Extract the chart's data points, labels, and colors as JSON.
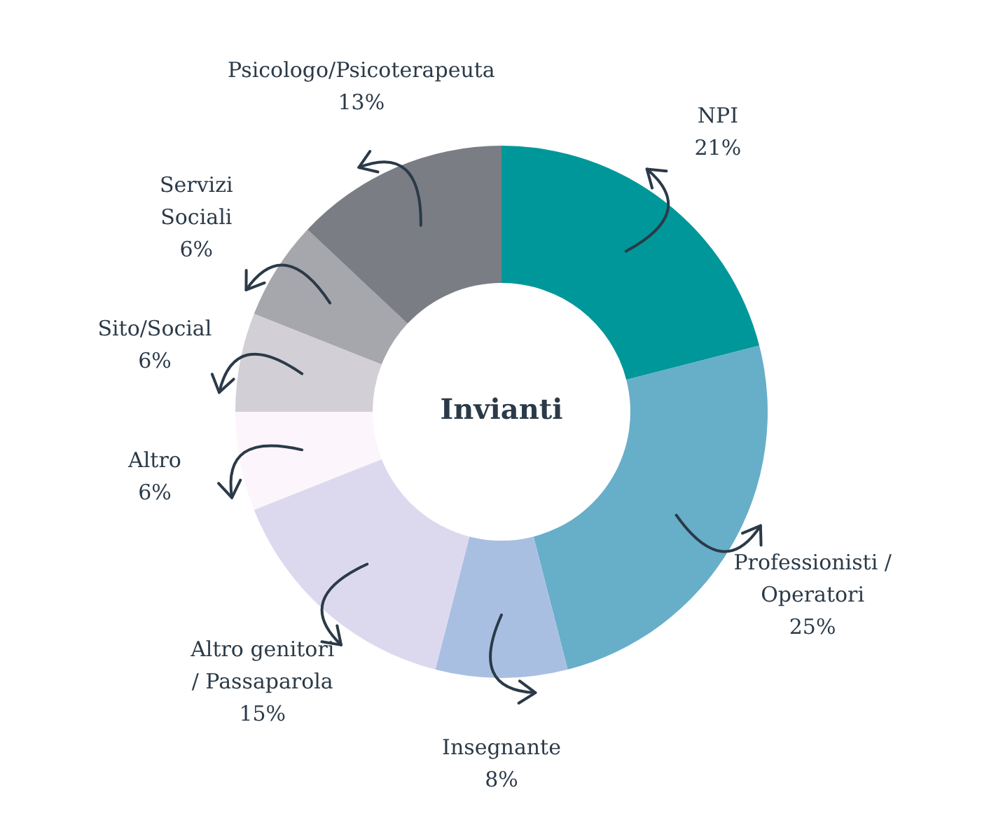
{
  "chart_data": {
    "type": "donut",
    "title": "Invianti",
    "categories": [
      "NPI",
      "Professionisti /\nOperatori",
      "Insegnante",
      "Altro genitori\n/ Passaparola",
      "Altro",
      "Sito/Social",
      "Servizi\nSociali",
      "Psicologo/Psicoterapeuta"
    ],
    "values": [
      21,
      25,
      8,
      15,
      6,
      6,
      6,
      13
    ],
    "value_labels": [
      "21%",
      "25%",
      "8%",
      "15%",
      "6%",
      "6%",
      "6%",
      "13%"
    ],
    "colors": [
      "#00979a",
      "#67aec9",
      "#a9bfe2",
      "#dcd9ef",
      "#fcf5fb",
      "#d2d0d6",
      "#a6a6ad",
      "#7a7d84"
    ]
  }
}
